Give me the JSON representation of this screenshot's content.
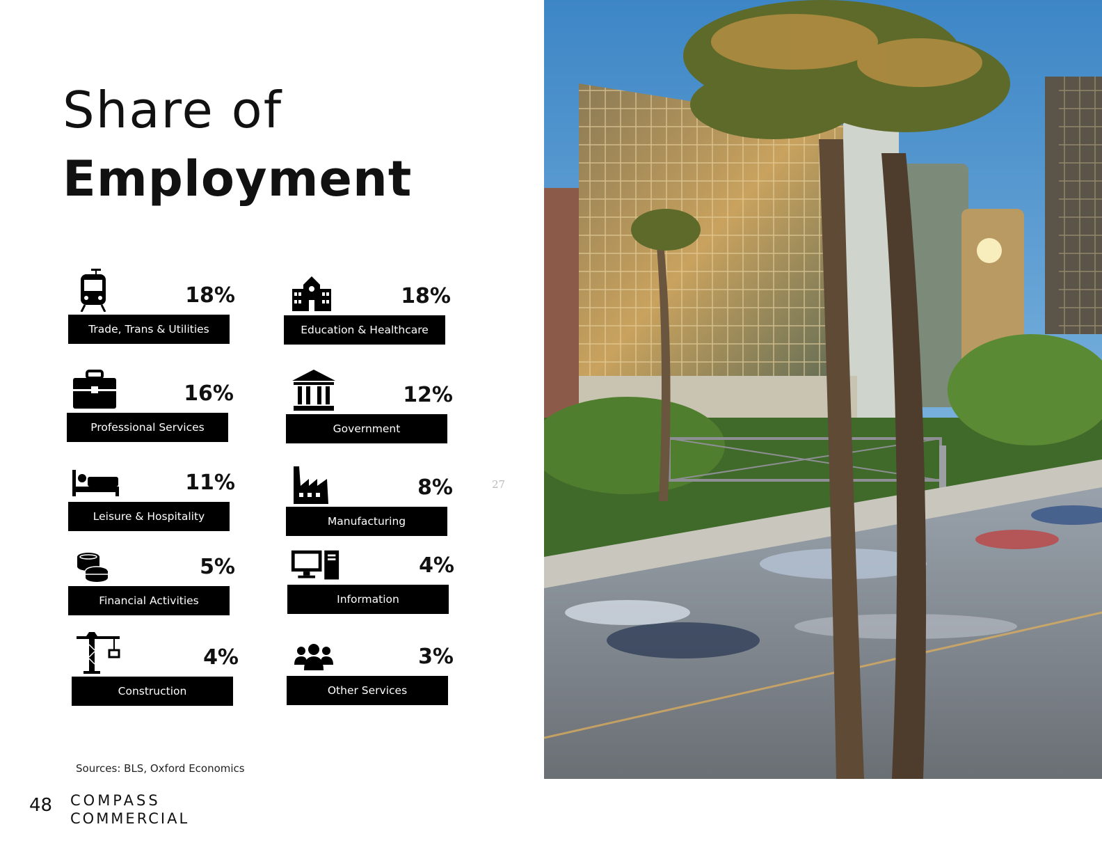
{
  "title": {
    "line1": "Share of",
    "line2": "Employment"
  },
  "sectors": [
    {
      "label": "Trade, Trans & Utilities",
      "value": "18%",
      "icon": "tram-icon"
    },
    {
      "label": "Education & Healthcare",
      "value": "18%",
      "icon": "school-icon"
    },
    {
      "label": "Professional Services",
      "value": "16%",
      "icon": "briefcase-icon"
    },
    {
      "label": "Government",
      "value": "12%",
      "icon": "government-building-icon"
    },
    {
      "label": "Leisure & Hospitality",
      "value": "11%",
      "icon": "bed-icon"
    },
    {
      "label": "Manufacturing",
      "value": "8%",
      "icon": "factory-icon"
    },
    {
      "label": "Financial Activities",
      "value": "5%",
      "icon": "coins-icon"
    },
    {
      "label": "Information",
      "value": "4%",
      "icon": "computer-icon"
    },
    {
      "label": "Construction",
      "value": "4%",
      "icon": "crane-icon"
    },
    {
      "label": "Other Services",
      "value": "3%",
      "icon": "people-icon"
    }
  ],
  "page_marker": "27",
  "sources": "Sources: BLS, Oxford Economics",
  "page_number": "48",
  "logo": {
    "line1": "COMPASS",
    "line2": "COMMERCIAL"
  },
  "photo": {
    "subject": "palm-trees-downtown-freeway-photo"
  }
}
